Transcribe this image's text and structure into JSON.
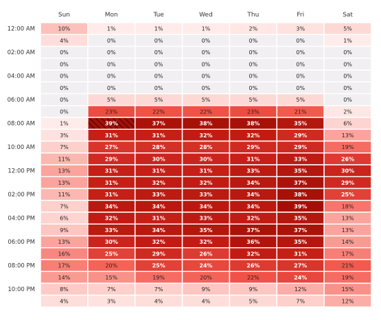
{
  "chart_data": {
    "type": "heatmap",
    "columns": [
      "Sun",
      "Mon",
      "Tue",
      "Wed",
      "Thu",
      "Fri",
      "Sat"
    ],
    "rows": 24,
    "row_labels": [
      "12:00 AM",
      "",
      "02:00 AM",
      "",
      "04:00 AM",
      "",
      "06:00 AM",
      "",
      "08:00 AM",
      "",
      "10:00 AM",
      "",
      "12:00 PM",
      "",
      "02:00 PM",
      "",
      "04:00 PM",
      "",
      "06:00 PM",
      "",
      "08:00 PM",
      "",
      "10:00 PM",
      ""
    ],
    "values": [
      [
        10,
        1,
        1,
        1,
        2,
        3,
        5
      ],
      [
        4,
        0,
        0,
        0,
        0,
        0,
        1
      ],
      [
        0,
        0,
        0,
        0,
        0,
        0,
        0
      ],
      [
        0,
        0,
        0,
        0,
        0,
        0,
        0
      ],
      [
        0,
        0,
        0,
        0,
        0,
        0,
        0
      ],
      [
        0,
        0,
        0,
        0,
        0,
        0,
        0
      ],
      [
        0,
        5,
        5,
        5,
        5,
        5,
        0
      ],
      [
        0,
        23,
        22,
        22,
        23,
        21,
        2
      ],
      [
        1,
        39,
        37,
        38,
        38,
        35,
        6
      ],
      [
        3,
        31,
        31,
        32,
        32,
        29,
        13
      ],
      [
        7,
        27,
        28,
        28,
        29,
        29,
        19
      ],
      [
        11,
        29,
        30,
        30,
        31,
        33,
        26
      ],
      [
        13,
        31,
        31,
        31,
        33,
        35,
        30
      ],
      [
        13,
        31,
        32,
        32,
        34,
        37,
        29
      ],
      [
        11,
        31,
        33,
        33,
        34,
        38,
        25
      ],
      [
        7,
        34,
        34,
        34,
        34,
        39,
        18
      ],
      [
        6,
        32,
        31,
        33,
        32,
        35,
        13
      ],
      [
        9,
        33,
        34,
        35,
        37,
        37,
        13
      ],
      [
        13,
        30,
        32,
        32,
        36,
        35,
        14
      ],
      [
        16,
        25,
        29,
        26,
        32,
        31,
        17
      ],
      [
        17,
        20,
        25,
        24,
        26,
        27,
        21
      ],
      [
        14,
        15,
        19,
        20,
        22,
        24,
        19
      ],
      [
        8,
        7,
        7,
        9,
        9,
        12,
        15
      ],
      [
        4,
        3,
        4,
        4,
        5,
        7,
        12
      ]
    ],
    "value_suffix": "%",
    "highlight_cell": {
      "row": 8,
      "col": 1
    },
    "colors": {
      "zero": "#f1eff1",
      "low": "#fff0ee",
      "high": "#a30f06",
      "text_dark": "#222222",
      "text_light": "#ffffff",
      "gridline": "#ffffff"
    }
  }
}
